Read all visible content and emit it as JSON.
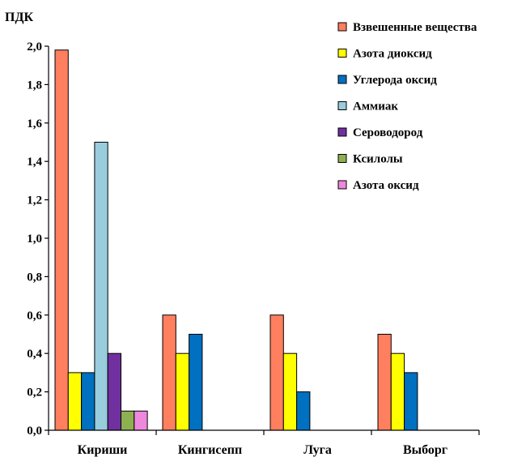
{
  "chart_data": {
    "type": "bar",
    "title": "",
    "xlabel": "",
    "ylabel": "ПДК",
    "ylim": [
      0,
      2.0
    ],
    "yticks": [
      "0,0",
      "0,2",
      "0,4",
      "0,6",
      "0,8",
      "1,0",
      "1,2",
      "1,4",
      "1,6",
      "1,8",
      "2,0"
    ],
    "grid": false,
    "legend_position": "top-right",
    "categories": [
      "Кириши",
      "Кингисепп",
      "Луга",
      "Выборг"
    ],
    "series": [
      {
        "name": "Взвешенные вещества",
        "color": "#FF7F5F",
        "values": [
          1.98,
          0.6,
          0.6,
          0.5
        ]
      },
      {
        "name": "Азота диоксид",
        "color": "#FFFF00",
        "values": [
          0.3,
          0.4,
          0.4,
          0.4
        ]
      },
      {
        "name": "Углерода оксид",
        "color": "#0070C0",
        "values": [
          0.3,
          0.5,
          0.2,
          0.3
        ]
      },
      {
        "name": "Аммиак",
        "color": "#99CCDD",
        "values": [
          1.5,
          null,
          null,
          null
        ]
      },
      {
        "name": "Сероводород",
        "color": "#7030A0",
        "values": [
          0.4,
          null,
          null,
          null
        ]
      },
      {
        "name": "Ксилолы",
        "color": "#8DB050",
        "values": [
          0.1,
          null,
          null,
          null
        ]
      },
      {
        "name": "Азота оксид",
        "color": "#EE88DD",
        "values": [
          0.1,
          null,
          null,
          null
        ]
      }
    ]
  }
}
